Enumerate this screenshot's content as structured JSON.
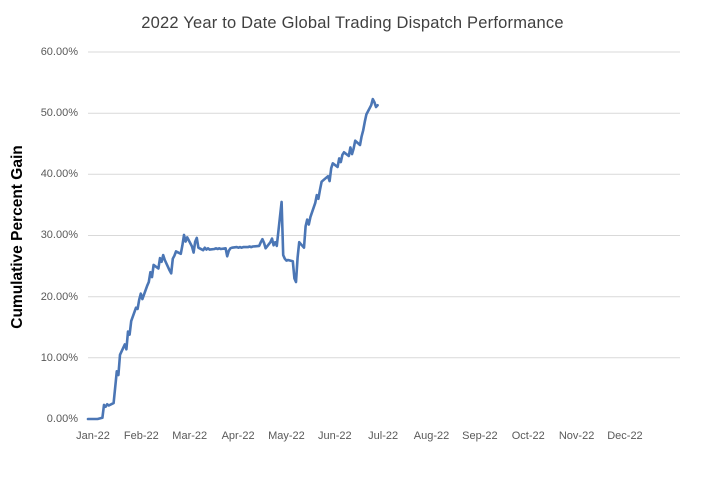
{
  "chart_data": {
    "type": "line",
    "title": "2022 Year to Date Global Trading Dispatch Performance",
    "xlabel": "",
    "ylabel": "Cumulative Percent Gain",
    "y_ticks": [
      "0.00%",
      "10.00%",
      "20.00%",
      "30.00%",
      "40.00%",
      "50.00%",
      "60.00%"
    ],
    "ylim": [
      0,
      60
    ],
    "x_tick_labels": [
      "Jan-22",
      "Feb-22",
      "Mar-22",
      "Apr-22",
      "May-22",
      "Jun-22",
      "Jul-22",
      "Aug-22",
      "Sep-22",
      "Oct-22",
      "Nov-22",
      "Dec-22"
    ],
    "grid": "horizontal",
    "legend": "none",
    "series": [
      {
        "name": "Cumulative Percent Gain",
        "color": "#4B76B5",
        "points": [
          [
            "Jan-1",
            0.0
          ],
          [
            "Jan-4",
            0.0
          ],
          [
            "Jan-7",
            0.0
          ],
          [
            "Jan-10",
            0.2
          ],
          [
            "Jan-11",
            2.3
          ],
          [
            "Jan-12",
            2.0
          ],
          [
            "Jan-13",
            2.4
          ],
          [
            "Jan-14",
            2.2
          ],
          [
            "Jan-17",
            2.6
          ],
          [
            "Jan-18",
            5.2
          ],
          [
            "Jan-19",
            7.8
          ],
          [
            "Jan-20",
            7.2
          ],
          [
            "Jan-21",
            10.5
          ],
          [
            "Jan-24",
            12.2
          ],
          [
            "Jan-25",
            11.4
          ],
          [
            "Jan-26",
            14.3
          ],
          [
            "Jan-27",
            13.8
          ],
          [
            "Jan-28",
            16.0
          ],
          [
            "Jan-31",
            18.2
          ],
          [
            "Feb-1",
            18.0
          ],
          [
            "Feb-2",
            19.5
          ],
          [
            "Feb-3",
            20.5
          ],
          [
            "Feb-4",
            19.6
          ],
          [
            "Feb-7",
            21.8
          ],
          [
            "Feb-8",
            22.4
          ],
          [
            "Feb-9",
            24.0
          ],
          [
            "Feb-10",
            23.2
          ],
          [
            "Feb-11",
            25.2
          ],
          [
            "Feb-14",
            24.6
          ],
          [
            "Feb-15",
            26.3
          ],
          [
            "Feb-16",
            25.7
          ],
          [
            "Feb-17",
            26.8
          ],
          [
            "Feb-18",
            26.0
          ],
          [
            "Feb-21",
            24.3
          ],
          [
            "Feb-22",
            23.8
          ],
          [
            "Feb-23",
            26.2
          ],
          [
            "Feb-24",
            26.7
          ],
          [
            "Feb-25",
            27.4
          ],
          [
            "Feb-28",
            27.0
          ],
          [
            "Mar-1",
            28.4
          ],
          [
            "Mar-2",
            30.1
          ],
          [
            "Mar-3",
            29.0
          ],
          [
            "Mar-4",
            29.7
          ],
          [
            "Mar-7",
            28.2
          ],
          [
            "Mar-8",
            27.2
          ],
          [
            "Mar-9",
            29.0
          ],
          [
            "Mar-10",
            29.6
          ],
          [
            "Mar-11",
            28.0
          ],
          [
            "Mar-14",
            27.6
          ],
          [
            "Mar-15",
            28.0
          ],
          [
            "Mar-16",
            27.7
          ],
          [
            "Mar-17",
            27.9
          ],
          [
            "Mar-18",
            27.7
          ],
          [
            "Mar-21",
            27.8
          ],
          [
            "Mar-22",
            27.9
          ],
          [
            "Mar-23",
            27.8
          ],
          [
            "Mar-24",
            27.9
          ],
          [
            "Mar-25",
            27.8
          ],
          [
            "Mar-28",
            27.9
          ],
          [
            "Mar-29",
            26.6
          ],
          [
            "Mar-30",
            27.5
          ],
          [
            "Mar-31",
            27.9
          ],
          [
            "Apr-1",
            28.0
          ],
          [
            "Apr-4",
            28.1
          ],
          [
            "Apr-5",
            28.0
          ],
          [
            "Apr-6",
            28.1
          ],
          [
            "Apr-7",
            28.0
          ],
          [
            "Apr-8",
            28.1
          ],
          [
            "Apr-11",
            28.1
          ],
          [
            "Apr-12",
            28.2
          ],
          [
            "Apr-13",
            28.1
          ],
          [
            "Apr-14",
            28.2
          ],
          [
            "Apr-18",
            28.3
          ],
          [
            "Apr-19",
            28.9
          ],
          [
            "Apr-20",
            29.4
          ],
          [
            "Apr-21",
            28.8
          ],
          [
            "Apr-22",
            27.9
          ],
          [
            "Apr-25",
            28.9
          ],
          [
            "Apr-26",
            29.5
          ],
          [
            "Apr-27",
            28.4
          ],
          [
            "Apr-28",
            28.9
          ],
          [
            "Apr-29",
            28.3
          ],
          [
            "May-2",
            35.5
          ],
          [
            "May-3",
            26.8
          ],
          [
            "May-4",
            26.2
          ],
          [
            "May-5",
            25.9
          ],
          [
            "May-6",
            26.0
          ],
          [
            "May-9",
            25.8
          ],
          [
            "May-10",
            23.0
          ],
          [
            "May-11",
            22.4
          ],
          [
            "May-12",
            26.4
          ],
          [
            "May-13",
            28.9
          ],
          [
            "May-16",
            28.0
          ],
          [
            "May-17",
            31.5
          ],
          [
            "May-18",
            32.6
          ],
          [
            "May-19",
            31.8
          ],
          [
            "May-20",
            33.0
          ],
          [
            "May-23",
            35.3
          ],
          [
            "May-24",
            36.6
          ],
          [
            "May-25",
            36.0
          ],
          [
            "May-26",
            37.5
          ],
          [
            "May-27",
            38.8
          ],
          [
            "May-31",
            39.7
          ],
          [
            "Jun-1",
            38.9
          ],
          [
            "Jun-2",
            41.0
          ],
          [
            "Jun-3",
            41.8
          ],
          [
            "Jun-6",
            41.2
          ],
          [
            "Jun-7",
            42.6
          ],
          [
            "Jun-8",
            42.0
          ],
          [
            "Jun-9",
            43.2
          ],
          [
            "Jun-10",
            43.6
          ],
          [
            "Jun-13",
            43.0
          ],
          [
            "Jun-14",
            44.4
          ],
          [
            "Jun-15",
            43.3
          ],
          [
            "Jun-16",
            44.2
          ],
          [
            "Jun-17",
            45.5
          ],
          [
            "Jun-20",
            44.8
          ],
          [
            "Jun-21",
            46.2
          ],
          [
            "Jun-22",
            47.2
          ],
          [
            "Jun-23",
            48.6
          ],
          [
            "Jun-24",
            49.8
          ],
          [
            "Jun-27",
            51.3
          ],
          [
            "Jun-28",
            52.3
          ],
          [
            "Jun-29",
            51.8
          ],
          [
            "Jun-30",
            51.0
          ],
          [
            "Jul-1",
            51.3
          ]
        ]
      }
    ]
  },
  "colors": {
    "line": "#4B76B5",
    "gridline": "#D9D9D9",
    "title_text": "#404040",
    "tick_text": "#595959",
    "axis_title_text": "#000000",
    "background": "#FFFFFF"
  }
}
